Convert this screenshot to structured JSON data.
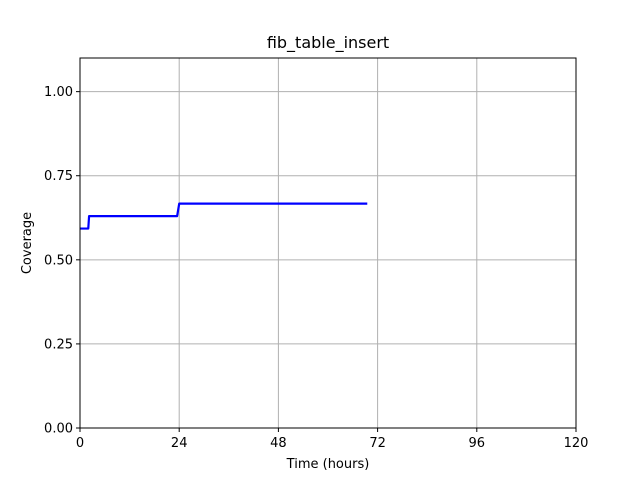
{
  "chart_data": {
    "type": "line",
    "title": "fib_table_insert",
    "xlabel": "Time (hours)",
    "ylabel": "Coverage",
    "xlim": [
      0,
      120
    ],
    "ylim": [
      0,
      1.1
    ],
    "xticks": [
      0,
      24,
      48,
      72,
      96,
      120
    ],
    "xtick_labels": [
      "0",
      "24",
      "48",
      "72",
      "96",
      "120"
    ],
    "yticks": [
      0,
      0.25,
      0.5,
      0.75,
      1.0
    ],
    "ytick_labels": [
      "0.00",
      "0.25",
      "0.50",
      "0.75",
      "1.00"
    ],
    "grid": true,
    "legend": false,
    "series": [
      {
        "color": "#0000ff",
        "x": [
          0,
          2,
          2.2,
          23.5,
          24,
          69.5
        ],
        "y": [
          0.593,
          0.593,
          0.63,
          0.63,
          0.667,
          0.667
        ]
      }
    ]
  }
}
